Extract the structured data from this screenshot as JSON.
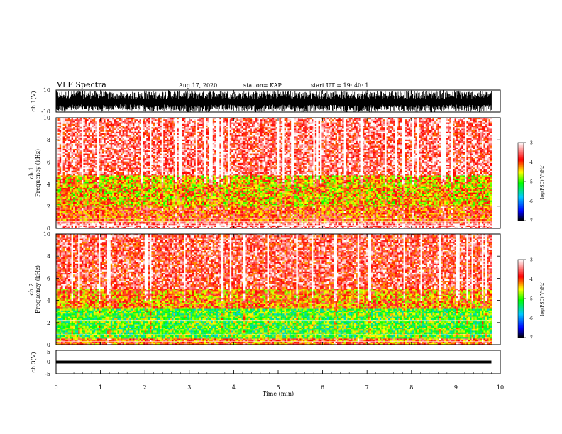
{
  "header": {
    "title": "VLF Spectra",
    "date": "Aug.17, 2020",
    "station": "station= KAP",
    "start": "start  UT  =    19: 40: 1"
  },
  "colors": {
    "waveform": "#000000",
    "spectrum_background": "#ffffff",
    "colormap": [
      "#000000",
      "#0000ff",
      "#00c8ff",
      "#00ff00",
      "#ffff00",
      "#ff0000",
      "#ffffff"
    ]
  },
  "chart_data": [
    {
      "type": "line",
      "panel": "ch1-waveform",
      "ylabel": "ch.1(V)",
      "ylim": [
        -10,
        10
      ],
      "ytick_labels": [
        "10",
        "-10"
      ],
      "xlim": [
        0,
        10
      ],
      "series": [
        {
          "values_description_free": true,
          "x": [
            0,
            0.5,
            1,
            1.5,
            2,
            2.5,
            3,
            3.5,
            4,
            4.5,
            5,
            5.5,
            6,
            6.5,
            7,
            7.5,
            8,
            8.5,
            9,
            9.5,
            9.8
          ],
          "y_min": [
            -10,
            -9,
            -10,
            -8,
            -10,
            -9,
            -10,
            -10,
            -9,
            -10,
            -9,
            -10,
            -9,
            -10,
            -10,
            -9,
            -10,
            -10,
            -9,
            -10,
            -9
          ],
          "y_max": [
            9,
            10,
            9,
            8,
            9,
            10,
            9,
            10,
            9,
            9,
            10,
            9,
            9,
            10,
            9,
            10,
            9,
            10,
            10,
            9,
            9
          ]
        }
      ]
    },
    {
      "type": "heatmap",
      "panel": "ch1-spectrogram",
      "ylabel_line1": "ch.1",
      "ylabel_line2": "Frequency  (kHz)",
      "ylim": [
        0,
        10
      ],
      "yticks": [
        "0",
        "2",
        "4",
        "6",
        "8",
        "10"
      ],
      "xlim": [
        0,
        9.8
      ],
      "colorbar": {
        "label": "log(PSD)(V²/Hz)",
        "range": [
          -7,
          -3
        ],
        "ticks": [
          "-3",
          "-4",
          "-5",
          "-6",
          "-7"
        ]
      },
      "bands": [
        {
          "freq": [
            0,
            0.5
          ],
          "log_psd": -3.3
        },
        {
          "freq": [
            0.5,
            2.0
          ],
          "log_psd": -4.0
        },
        {
          "freq": [
            2.0,
            4.8
          ],
          "log_psd": -4.4
        },
        {
          "freq": [
            4.8,
            10
          ],
          "log_psd": -3.5
        }
      ]
    },
    {
      "type": "heatmap",
      "panel": "ch2-spectrogram",
      "ylabel_line1": "ch.2",
      "ylabel_line2": "Frequency  (kHz)",
      "ylim": [
        0,
        10
      ],
      "yticks": [
        "0",
        "2",
        "4",
        "6",
        "8",
        "10"
      ],
      "xlim": [
        0,
        9.8
      ],
      "colorbar": {
        "label": "log(PSD)(V²/Hz)",
        "range": [
          -7,
          -3
        ],
        "ticks": [
          "-3",
          "-4",
          "-5",
          "-6",
          "-7"
        ]
      },
      "bands": [
        {
          "freq": [
            0,
            0.6
          ],
          "log_psd": -4.0
        },
        {
          "freq": [
            0.6,
            3.2
          ],
          "log_psd": -5.0
        },
        {
          "freq": [
            3.2,
            5.0
          ],
          "log_psd": -4.2
        },
        {
          "freq": [
            5.0,
            10
          ],
          "log_psd": -3.6
        }
      ]
    },
    {
      "type": "line",
      "panel": "ch3-waveform",
      "ylabel": "ch.3(V)",
      "ylim": [
        -5,
        5
      ],
      "ytick_labels": [
        "5",
        "0",
        "-5"
      ],
      "xlim": [
        0,
        10
      ],
      "series": [
        {
          "x": [
            0,
            9.8
          ],
          "y_min": [
            -0.6,
            -0.6
          ],
          "y_max": [
            0.6,
            0.6
          ]
        }
      ]
    }
  ],
  "xaxis": {
    "label": "Time  (min)",
    "ticks": [
      "0",
      "1",
      "2",
      "3",
      "4",
      "5",
      "6",
      "7",
      "8",
      "9",
      "10"
    ],
    "range": [
      0,
      10
    ]
  }
}
